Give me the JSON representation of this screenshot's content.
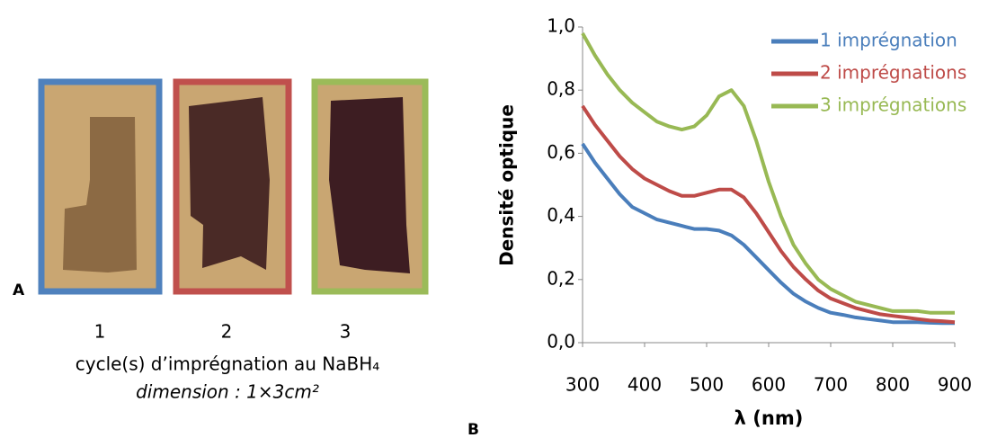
{
  "panel_a": {
    "letter": "A",
    "samples": [
      "1",
      "2",
      "3"
    ],
    "caption": "cycle(s) d’imprégnation au NaBH₄",
    "dimension": "dimension : 1×3cm²"
  },
  "chart_data": {
    "type": "line",
    "letter": "B",
    "y_label": "Densité optique",
    "x_label": "λ (nm)",
    "x": [
      300,
      320,
      340,
      360,
      380,
      400,
      420,
      440,
      460,
      480,
      500,
      520,
      540,
      560,
      580,
      600,
      620,
      640,
      660,
      680,
      700,
      720,
      740,
      760,
      780,
      800,
      820,
      840,
      860,
      880,
      900
    ],
    "series": [
      {
        "name": "1 imprégnation",
        "color": "#4a7ebb",
        "values": [
          0.63,
          0.57,
          0.52,
          0.47,
          0.43,
          0.41,
          0.39,
          0.38,
          0.37,
          0.36,
          0.36,
          0.355,
          0.34,
          0.31,
          0.27,
          0.23,
          0.19,
          0.155,
          0.13,
          0.11,
          0.095,
          0.088,
          0.08,
          0.075,
          0.07,
          0.065,
          0.065,
          0.065,
          0.063,
          0.062,
          0.062
        ]
      },
      {
        "name": "2 imprégnations",
        "color": "#be4b48",
        "values": [
          0.75,
          0.69,
          0.64,
          0.59,
          0.55,
          0.52,
          0.5,
          0.48,
          0.465,
          0.465,
          0.475,
          0.485,
          0.485,
          0.46,
          0.41,
          0.35,
          0.29,
          0.24,
          0.2,
          0.165,
          0.14,
          0.125,
          0.11,
          0.1,
          0.09,
          0.085,
          0.08,
          0.075,
          0.07,
          0.068,
          0.065
        ]
      },
      {
        "name": "3 imprégnations",
        "color": "#98b954",
        "values": [
          0.98,
          0.91,
          0.85,
          0.8,
          0.76,
          0.73,
          0.7,
          0.685,
          0.675,
          0.685,
          0.72,
          0.78,
          0.8,
          0.75,
          0.64,
          0.51,
          0.4,
          0.31,
          0.25,
          0.2,
          0.17,
          0.15,
          0.13,
          0.12,
          0.11,
          0.1,
          0.1,
          0.1,
          0.095,
          0.095,
          0.095
        ]
      }
    ],
    "xlim": [
      300,
      900
    ],
    "xticks": [
      300,
      400,
      500,
      600,
      700,
      800,
      900
    ],
    "ylim": [
      0,
      1
    ],
    "yticks": [
      {
        "value": 0,
        "label": "0,0"
      },
      {
        "value": 0.2,
        "label": "0,2"
      },
      {
        "value": 0.4,
        "label": "0,4"
      },
      {
        "value": 0.6,
        "label": "0,6"
      },
      {
        "value": 0.8,
        "label": "0,8"
      },
      {
        "value": 1,
        "label": "1,0"
      }
    ],
    "legend": "top-right"
  }
}
